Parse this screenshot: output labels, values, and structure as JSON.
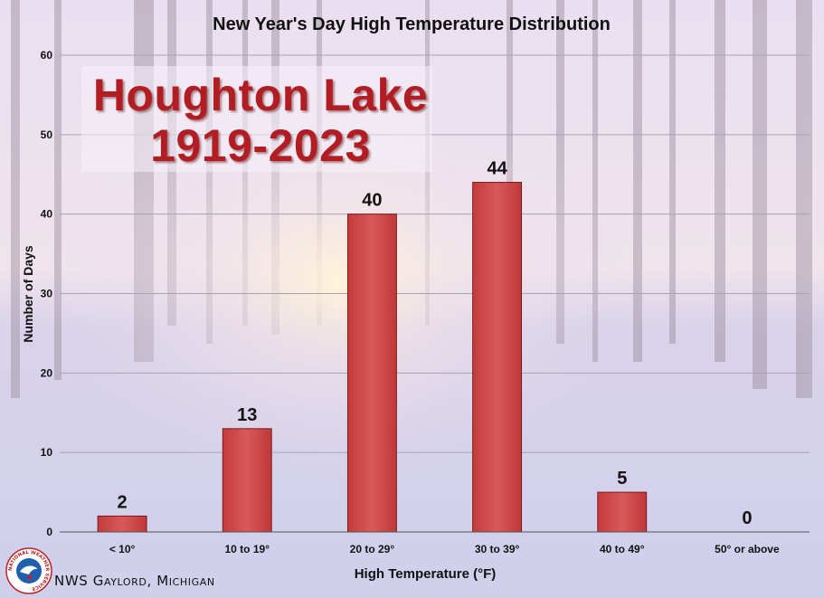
{
  "chart_data": {
    "type": "bar",
    "title": "New Year's Day High Temperature Distribution",
    "xlabel": "High Temperature (°F)",
    "ylabel": "Number of Days",
    "categories": [
      "< 10°",
      "10 to 19°",
      "20 to 29°",
      "30 to 39°",
      "40 to 49°",
      "50° or above"
    ],
    "values": [
      2,
      13,
      40,
      44,
      5,
      0
    ],
    "data_labels": [
      "2",
      "13",
      "40",
      "44",
      "5",
      "0"
    ],
    "ylim": [
      0,
      60
    ],
    "yticks": [
      0,
      10,
      20,
      30,
      40,
      50,
      60
    ],
    "ytick_labels": [
      "0",
      "10",
      "20",
      "30",
      "40",
      "50",
      "60"
    ],
    "grid": true,
    "bar_color": "#cd4a4a",
    "annotation": {
      "line1": "Houghton Lake",
      "line2": "1919-2023"
    }
  },
  "footer": {
    "credit": "NWS Gaylord, Michigan"
  },
  "logo": {
    "icon": "nws-logo-icon",
    "ring_text": "NATIONAL WEATHER SERVICE"
  }
}
